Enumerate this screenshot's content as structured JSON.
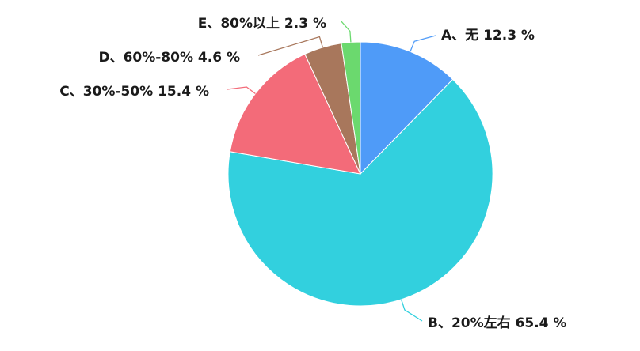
{
  "chart_data": {
    "type": "pie",
    "title": "",
    "slices": [
      {
        "category": "A、无",
        "value": 12.3,
        "label": "A、无 12.3 %",
        "color": "#4f9bf8"
      },
      {
        "category": "B、20%左右",
        "value": 65.4,
        "label": "B、20%左右 65.4 %",
        "color": "#32d0de"
      },
      {
        "category": "C、30%-50%",
        "value": 15.4,
        "label": "C、30%-50% 15.4 %",
        "color": "#f36b79"
      },
      {
        "category": "D、60%-80%",
        "value": 4.6,
        "label": "D、60%-80% 4.6 %",
        "color": "#a8775c"
      },
      {
        "category": "E、80%以上",
        "value": 2.3,
        "label": "E、80%以上 2.3 %",
        "color": "#6bd96e"
      }
    ],
    "start": "12 o'clock",
    "direction": "clockwise",
    "legend": "none"
  }
}
